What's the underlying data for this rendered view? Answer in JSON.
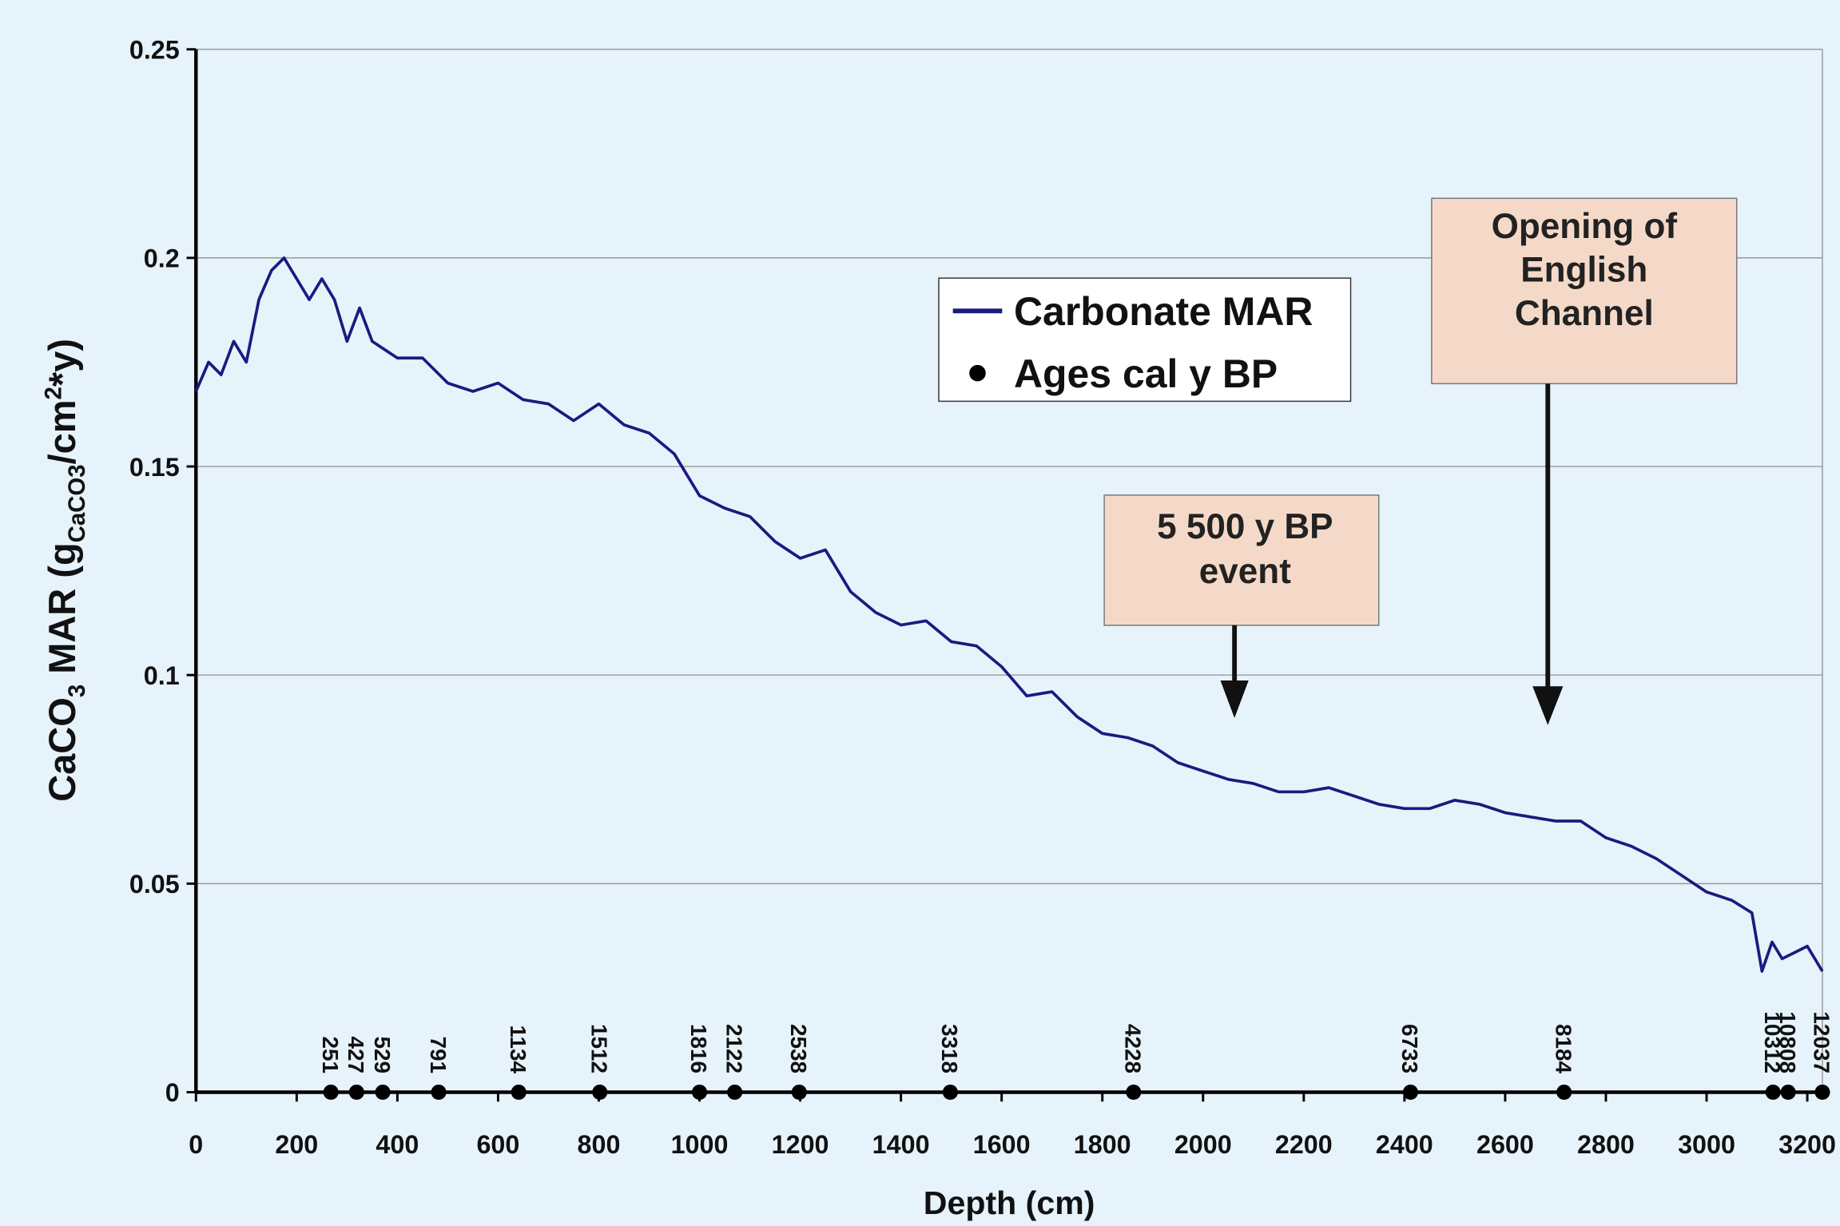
{
  "chart_data": {
    "type": "line",
    "x_label": "Depth (cm)",
    "y_label": [
      "CaCO",
      "3",
      " MAR (g",
      "CaCO3",
      "/cm",
      "2",
      "*y)"
    ],
    "xlim": [
      0,
      3230
    ],
    "xticks": [
      0,
      200,
      400,
      600,
      800,
      1000,
      1200,
      1400,
      1600,
      1800,
      2000,
      2200,
      2400,
      2600,
      2800,
      3000,
      3200
    ],
    "ylim": [
      0,
      0.25
    ],
    "yticks": [
      0,
      0.05,
      0.1,
      0.15,
      0.2,
      0.25
    ],
    "grid": true,
    "series": [
      {
        "name": "Carbonate MAR",
        "color": "#1a1a80",
        "x": [
          0,
          25,
          50,
          75,
          100,
          125,
          150,
          175,
          200,
          225,
          250,
          275,
          300,
          325,
          350,
          375,
          400,
          450,
          500,
          550,
          600,
          650,
          700,
          750,
          800,
          850,
          900,
          950,
          1000,
          1050,
          1100,
          1150,
          1200,
          1250,
          1300,
          1350,
          1400,
          1450,
          1500,
          1550,
          1600,
          1650,
          1700,
          1750,
          1800,
          1850,
          1900,
          1950,
          2000,
          2050,
          2100,
          2150,
          2200,
          2250,
          2300,
          2350,
          2400,
          2450,
          2500,
          2550,
          2600,
          2650,
          2700,
          2750,
          2800,
          2850,
          2900,
          2950,
          3000,
          3050,
          3090,
          3110,
          3130,
          3150,
          3200,
          3230
        ],
        "values": [
          0.168,
          0.175,
          0.172,
          0.18,
          0.175,
          0.19,
          0.197,
          0.2,
          0.195,
          0.19,
          0.195,
          0.19,
          0.18,
          0.188,
          0.18,
          0.178,
          0.176,
          0.176,
          0.17,
          0.168,
          0.17,
          0.166,
          0.165,
          0.161,
          0.165,
          0.16,
          0.158,
          0.153,
          0.143,
          0.14,
          0.138,
          0.132,
          0.128,
          0.13,
          0.12,
          0.115,
          0.112,
          0.113,
          0.108,
          0.107,
          0.102,
          0.095,
          0.096,
          0.09,
          0.086,
          0.085,
          0.083,
          0.079,
          0.077,
          0.075,
          0.074,
          0.072,
          0.072,
          0.073,
          0.071,
          0.069,
          0.068,
          0.068,
          0.07,
          0.069,
          0.067,
          0.066,
          0.065,
          0.065,
          0.061,
          0.059,
          0.056,
          0.052,
          0.048,
          0.046,
          0.043,
          0.029,
          0.036,
          0.032,
          0.035,
          0.029
        ]
      },
      {
        "name": "Ages cal y BP",
        "color": "#000000",
        "type": "scatter",
        "x": [
          268,
          319,
          371,
          482,
          641,
          802,
          1000,
          1070,
          1198,
          1498,
          1862,
          2412,
          2717,
          3132,
          3162,
          3230
        ],
        "values": [
          0,
          0,
          0,
          0,
          0,
          0,
          0,
          0,
          0,
          0,
          0,
          0,
          0,
          0,
          0,
          0
        ],
        "labels": [
          251,
          427,
          529,
          791,
          1134,
          1512,
          1816,
          2122,
          2538,
          3318,
          4228,
          6733,
          8184,
          10312,
          10808,
          12037
        ]
      }
    ],
    "annotations": [
      {
        "lines": [
          "5 500 y BP",
          "event"
        ]
      },
      {
        "lines": [
          "Opening of",
          "English",
          "Channel"
        ]
      }
    ]
  }
}
